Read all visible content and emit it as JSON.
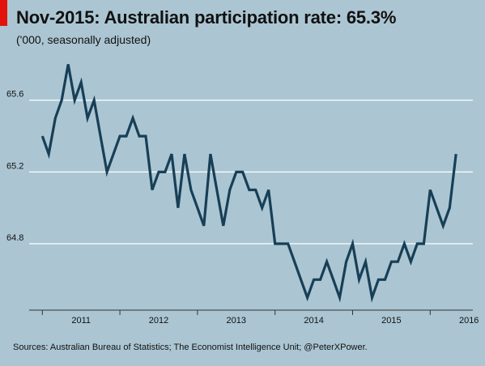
{
  "title": "Nov-2015: Australian participation rate: 65.3%",
  "subtitle": "('000, seasonally adjusted)",
  "source": "Sources: Australian Bureau of Statistics; The Economist Intelligence Unit; @PeterXPower.",
  "colors": {
    "background": "#abc6d2",
    "line": "#173f57",
    "grid": "#ffffff",
    "axis": "#333333",
    "accent": "#e3120b"
  },
  "chart_data": {
    "type": "line",
    "title": "Nov-2015: Australian participation rate: 65.3%",
    "subtitle": "('000, seasonally adjusted)",
    "xlabel": "",
    "ylabel": "",
    "x_start_label": "Jul-2010",
    "x_tick_labels": [
      "2011",
      "2012",
      "2013",
      "2014",
      "2015",
      "2016"
    ],
    "y_tick_labels": [
      "64.8",
      "65.2",
      "65.6"
    ],
    "y_ticks": [
      64.8,
      65.2,
      65.6
    ],
    "ylim": [
      64.43,
      65.82
    ],
    "xlim": [
      2010.33,
      2016.05
    ],
    "grid": true,
    "legend": "none",
    "series": [
      {
        "x": [
          2010.5,
          2010.583,
          2010.667,
          2010.75,
          2010.833,
          2010.917,
          2011.0,
          2011.083,
          2011.167,
          2011.25,
          2011.333,
          2011.417,
          2011.5,
          2011.583,
          2011.667,
          2011.75,
          2011.833,
          2011.917,
          2012.0,
          2012.083,
          2012.167,
          2012.25,
          2012.333,
          2012.417,
          2012.5,
          2012.583,
          2012.667,
          2012.75,
          2012.833,
          2012.917,
          2013.0,
          2013.083,
          2013.167,
          2013.25,
          2013.333,
          2013.417,
          2013.5,
          2013.583,
          2013.667,
          2013.75,
          2013.833,
          2013.917,
          2014.0,
          2014.083,
          2014.167,
          2014.25,
          2014.333,
          2014.417,
          2014.5,
          2014.583,
          2014.667,
          2014.75,
          2014.833,
          2014.917,
          2015.0,
          2015.083,
          2015.167,
          2015.25,
          2015.333,
          2015.417,
          2015.5,
          2015.583,
          2015.667,
          2015.75,
          2015.833
        ],
        "values": [
          65.4,
          65.3,
          65.5,
          65.6,
          65.8,
          65.6,
          65.7,
          65.5,
          65.6,
          65.4,
          65.2,
          65.3,
          65.4,
          65.4,
          65.5,
          65.4,
          65.4,
          65.1,
          65.2,
          65.2,
          65.3,
          65.0,
          65.3,
          65.1,
          65.0,
          64.9,
          65.3,
          65.1,
          64.9,
          65.1,
          65.2,
          65.2,
          65.1,
          65.1,
          65.0,
          65.1,
          64.8,
          64.8,
          64.8,
          64.7,
          64.6,
          64.5,
          64.6,
          64.6,
          64.7,
          64.6,
          64.5,
          64.7,
          64.8,
          64.6,
          64.7,
          64.5,
          64.6,
          64.6,
          64.7,
          64.7,
          64.8,
          64.7,
          64.8,
          64.8,
          65.1,
          65.0,
          64.9,
          65.0,
          65.3
        ]
      }
    ]
  }
}
